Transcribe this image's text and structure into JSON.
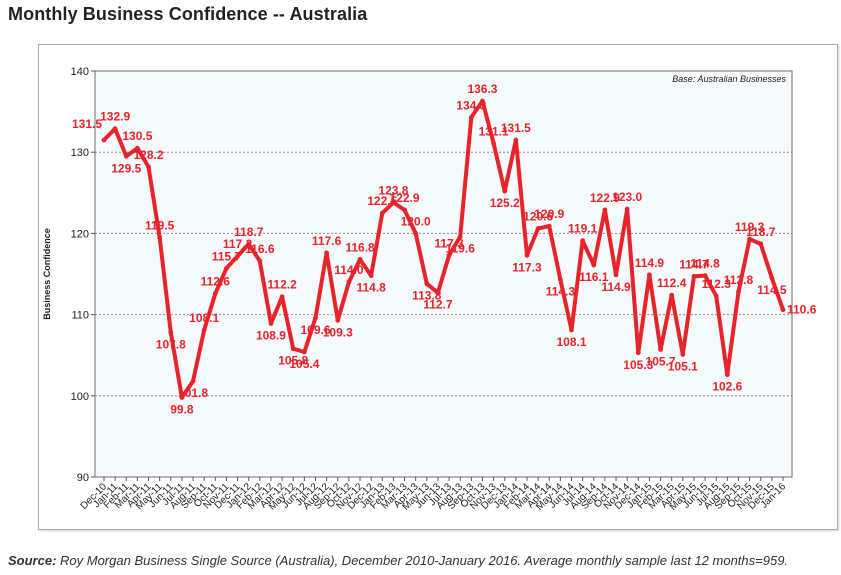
{
  "page": {
    "title": "Monthly Business Confidence -- Australia",
    "source_label": "Source:",
    "source_text": " Roy Morgan Business Single Source (Australia), December 2010-January 2016. Average monthly sample last 12 months=959."
  },
  "colors": {
    "line": "#e8232a",
    "label": "#e8232a",
    "plot_bg": "#f5fafd",
    "grid": "#8c8c8c",
    "axis_text": "#222222"
  },
  "chart_data": {
    "type": "line",
    "title": "",
    "ylabel": "Business Confidence",
    "xlabel": "",
    "annotation": "Base: Australian Businesses",
    "ylim": [
      90,
      140
    ],
    "yticks": [
      90,
      100,
      110,
      120,
      130,
      140
    ],
    "grid": true,
    "categories": [
      "Dec-10",
      "Jan-11",
      "Feb-11",
      "Mar-11",
      "Apr-11",
      "May-11",
      "Jun-11",
      "Jul-11",
      "Aug-11",
      "Sep-11",
      "Oct-11",
      "Nov-11",
      "Dec-11",
      "Jan-12",
      "Feb-12",
      "Mar-12",
      "Apr-12",
      "May-12",
      "Jun-12",
      "Jul-12",
      "Aug-12",
      "Sep-12",
      "Oct-12",
      "Nov-12",
      "Dec-12",
      "Jan-13",
      "Feb-13",
      "Mar-13",
      "Apr-13",
      "May-13",
      "Jun-13",
      "Jul-13",
      "Aug-13",
      "Sep-13",
      "Oct-13",
      "Nov-13",
      "Dec-13",
      "Jan-14",
      "Feb-14",
      "Mar-14",
      "Apr-14",
      "May-14",
      "Jun-14",
      "Jul-14",
      "Aug-14",
      "Sep-14",
      "Oct-14",
      "Nov-14",
      "Dec-14",
      "Jan-15",
      "Feb-15",
      "Mar-15",
      "Apr-15",
      "May-15",
      "Jun-15",
      "Jul-15",
      "Aug-15",
      "Sep-15",
      "Oct-15",
      "Nov-15",
      "Dec-15",
      "Jan-16"
    ],
    "series": [
      {
        "name": "Business Confidence",
        "values": [
          131.5,
          132.9,
          129.5,
          130.5,
          128.2,
          119.5,
          107.8,
          99.8,
          101.8,
          108.1,
          112.6,
          115.7,
          117.2,
          118.7,
          116.6,
          108.9,
          112.2,
          105.8,
          105.4,
          109.6,
          117.6,
          109.3,
          114.0,
          116.8,
          114.8,
          122.5,
          123.8,
          122.9,
          120.0,
          113.8,
          112.7,
          117.3,
          119.6,
          134.3,
          136.3,
          131.1,
          125.2,
          131.5,
          117.3,
          120.6,
          120.9,
          114.3,
          108.1,
          119.1,
          116.1,
          122.9,
          114.9,
          123.0,
          105.3,
          114.9,
          105.7,
          112.4,
          105.1,
          114.7,
          114.8,
          112.3,
          102.6,
          112.8,
          119.3,
          118.7,
          114.5,
          110.6
        ],
        "labels": [
          "131.5",
          "132.9",
          "129.5",
          "130.5",
          "128.2",
          "119.5",
          "107.8",
          "99.8",
          "101.8",
          "108.1",
          "112.6",
          "115.7",
          "117.2",
          "118.7",
          "116.6",
          "108.9",
          "112.2",
          "105.8",
          "105.4",
          "109.6",
          "117.6",
          "109.3",
          "114.0",
          "116.8",
          "114.8",
          "122.5",
          "123.8",
          "122.9",
          "120.0",
          "113.8",
          "112.7",
          "117.3",
          "119.6",
          "134.3",
          "136.3",
          "131.1",
          "125.2",
          "131.5",
          "117.3",
          "120.6",
          "120.9",
          "114.3",
          "108.1",
          "119.1",
          "116.1",
          "122.9",
          "114.9",
          "123.0",
          "105.3",
          "114.9",
          "105.7",
          "112.4",
          "105.1",
          "114.7",
          "114.8",
          "112.3",
          "102.6",
          "112.8",
          "119.3",
          "118.7",
          "114.5",
          "110.6"
        ]
      }
    ]
  }
}
